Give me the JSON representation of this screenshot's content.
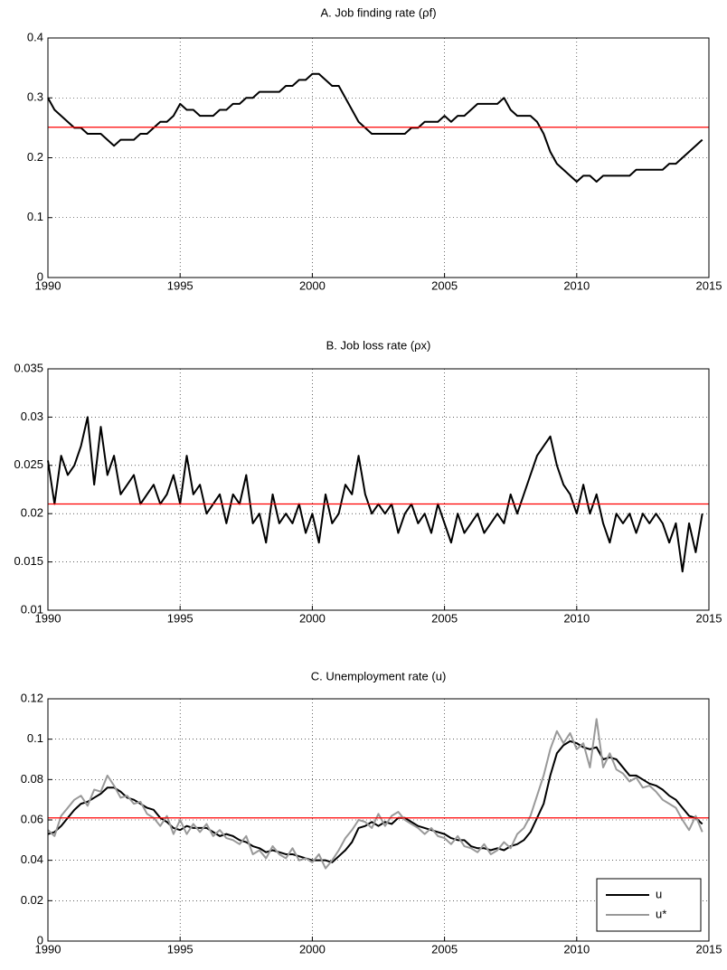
{
  "chart_data": [
    {
      "type": "line",
      "title": "A. Job finding rate (ρf)",
      "grid": true,
      "xlim": [
        1990,
        2015
      ],
      "xticks": [
        1990,
        1995,
        2000,
        2005,
        2010,
        2015
      ],
      "ylim": [
        0,
        0.4
      ],
      "yticks": [
        0,
        0.1,
        0.2,
        0.3,
        0.4
      ],
      "reference_line": {
        "value": 0.251,
        "color": "#ff0000"
      },
      "x": [
        1990,
        1990.25,
        1990.5,
        1990.75,
        1991,
        1991.25,
        1991.5,
        1991.75,
        1992,
        1992.25,
        1992.5,
        1992.75,
        1993,
        1993.25,
        1993.5,
        1993.75,
        1994,
        1994.25,
        1994.5,
        1994.75,
        1995,
        1995.25,
        1995.5,
        1995.75,
        1996,
        1996.25,
        1996.5,
        1996.75,
        1997,
        1997.25,
        1997.5,
        1997.75,
        1998,
        1998.25,
        1998.5,
        1998.75,
        1999,
        1999.25,
        1999.5,
        1999.75,
        2000,
        2000.25,
        2000.5,
        2000.75,
        2001,
        2001.25,
        2001.5,
        2001.75,
        2002,
        2002.25,
        2002.5,
        2002.75,
        2003,
        2003.25,
        2003.5,
        2003.75,
        2004,
        2004.25,
        2004.5,
        2004.75,
        2005,
        2005.25,
        2005.5,
        2005.75,
        2006,
        2006.25,
        2006.5,
        2006.75,
        2007,
        2007.25,
        2007.5,
        2007.75,
        2008,
        2008.25,
        2008.5,
        2008.75,
        2009,
        2009.25,
        2009.5,
        2009.75,
        2010,
        2010.25,
        2010.5,
        2010.75,
        2011,
        2011.25,
        2011.5,
        2011.75,
        2012,
        2012.25,
        2012.5,
        2012.75,
        2013,
        2013.25,
        2013.5,
        2013.75,
        2014,
        2014.25,
        2014.5,
        2014.75
      ],
      "series": [
        {
          "color": "#000000",
          "values": [
            0.3,
            0.28,
            0.27,
            0.26,
            0.25,
            0.25,
            0.24,
            0.24,
            0.24,
            0.23,
            0.22,
            0.23,
            0.23,
            0.23,
            0.24,
            0.24,
            0.25,
            0.26,
            0.26,
            0.27,
            0.29,
            0.28,
            0.28,
            0.27,
            0.27,
            0.27,
            0.28,
            0.28,
            0.29,
            0.29,
            0.3,
            0.3,
            0.31,
            0.31,
            0.31,
            0.31,
            0.32,
            0.32,
            0.33,
            0.33,
            0.34,
            0.34,
            0.33,
            0.32,
            0.32,
            0.3,
            0.28,
            0.26,
            0.25,
            0.24,
            0.24,
            0.24,
            0.24,
            0.24,
            0.24,
            0.25,
            0.25,
            0.26,
            0.26,
            0.26,
            0.27,
            0.26,
            0.27,
            0.27,
            0.28,
            0.29,
            0.29,
            0.29,
            0.29,
            0.3,
            0.28,
            0.27,
            0.27,
            0.27,
            0.26,
            0.24,
            0.21,
            0.19,
            0.18,
            0.17,
            0.16,
            0.17,
            0.17,
            0.16,
            0.17,
            0.17,
            0.17,
            0.17,
            0.17,
            0.18,
            0.18,
            0.18,
            0.18,
            0.18,
            0.19,
            0.19,
            0.2,
            0.21,
            0.22,
            0.23
          ]
        }
      ]
    },
    {
      "type": "line",
      "title": "B. Job loss rate (ρx)",
      "grid": true,
      "xlim": [
        1990,
        2015
      ],
      "xticks": [
        1990,
        1995,
        2000,
        2005,
        2010,
        2015
      ],
      "ylim": [
        0.01,
        0.035
      ],
      "yticks": [
        0.01,
        0.015,
        0.02,
        0.025,
        0.03,
        0.035
      ],
      "reference_line": {
        "value": 0.021,
        "color": "#ff0000"
      },
      "x": [
        1990,
        1990.25,
        1990.5,
        1990.75,
        1991,
        1991.25,
        1991.5,
        1991.75,
        1992,
        1992.25,
        1992.5,
        1992.75,
        1993,
        1993.25,
        1993.5,
        1993.75,
        1994,
        1994.25,
        1994.5,
        1994.75,
        1995,
        1995.25,
        1995.5,
        1995.75,
        1996,
        1996.25,
        1996.5,
        1996.75,
        1997,
        1997.25,
        1997.5,
        1997.75,
        1998,
        1998.25,
        1998.5,
        1998.75,
        1999,
        1999.25,
        1999.5,
        1999.75,
        2000,
        2000.25,
        2000.5,
        2000.75,
        2001,
        2001.25,
        2001.5,
        2001.75,
        2002,
        2002.25,
        2002.5,
        2002.75,
        2003,
        2003.25,
        2003.5,
        2003.75,
        2004,
        2004.25,
        2004.5,
        2004.75,
        2005,
        2005.25,
        2005.5,
        2005.75,
        2006,
        2006.25,
        2006.5,
        2006.75,
        2007,
        2007.25,
        2007.5,
        2007.75,
        2008,
        2008.25,
        2008.5,
        2008.75,
        2009,
        2009.25,
        2009.5,
        2009.75,
        2010,
        2010.25,
        2010.5,
        2010.75,
        2011,
        2011.25,
        2011.5,
        2011.75,
        2012,
        2012.25,
        2012.5,
        2012.75,
        2013,
        2013.25,
        2013.5,
        2013.75,
        2014,
        2014.25,
        2014.5,
        2014.75
      ],
      "series": [
        {
          "color": "#000000",
          "values": [
            0.0255,
            0.021,
            0.026,
            0.024,
            0.025,
            0.027,
            0.03,
            0.023,
            0.029,
            0.024,
            0.026,
            0.022,
            0.023,
            0.024,
            0.021,
            0.022,
            0.023,
            0.021,
            0.022,
            0.024,
            0.021,
            0.026,
            0.022,
            0.023,
            0.02,
            0.021,
            0.022,
            0.019,
            0.022,
            0.021,
            0.024,
            0.019,
            0.02,
            0.017,
            0.022,
            0.019,
            0.02,
            0.019,
            0.021,
            0.018,
            0.02,
            0.017,
            0.022,
            0.019,
            0.02,
            0.023,
            0.022,
            0.026,
            0.022,
            0.02,
            0.021,
            0.02,
            0.021,
            0.018,
            0.02,
            0.021,
            0.019,
            0.02,
            0.018,
            0.021,
            0.019,
            0.017,
            0.02,
            0.018,
            0.019,
            0.02,
            0.018,
            0.019,
            0.02,
            0.019,
            0.022,
            0.02,
            0.022,
            0.024,
            0.026,
            0.027,
            0.028,
            0.025,
            0.023,
            0.022,
            0.02,
            0.023,
            0.02,
            0.022,
            0.019,
            0.017,
            0.02,
            0.019,
            0.02,
            0.018,
            0.02,
            0.019,
            0.02,
            0.019,
            0.017,
            0.019,
            0.014,
            0.019,
            0.016,
            0.02
          ]
        }
      ]
    },
    {
      "type": "line",
      "title": "C. Unemployment rate (u)",
      "grid": true,
      "legend": "lower right",
      "xlim": [
        1990,
        2015
      ],
      "xticks": [
        1990,
        1995,
        2000,
        2005,
        2010,
        2015
      ],
      "ylim": [
        0,
        0.12
      ],
      "yticks": [
        0,
        0.02,
        0.04,
        0.06,
        0.08,
        0.1,
        0.12
      ],
      "reference_line": {
        "value": 0.061,
        "color": "#ff0000"
      },
      "x": [
        1990,
        1990.25,
        1990.5,
        1990.75,
        1991,
        1991.25,
        1991.5,
        1991.75,
        1992,
        1992.25,
        1992.5,
        1992.75,
        1993,
        1993.25,
        1993.5,
        1993.75,
        1994,
        1994.25,
        1994.5,
        1994.75,
        1995,
        1995.25,
        1995.5,
        1995.75,
        1996,
        1996.25,
        1996.5,
        1996.75,
        1997,
        1997.25,
        1997.5,
        1997.75,
        1998,
        1998.25,
        1998.5,
        1998.75,
        1999,
        1999.25,
        1999.5,
        1999.75,
        2000,
        2000.25,
        2000.5,
        2000.75,
        2001,
        2001.25,
        2001.5,
        2001.75,
        2002,
        2002.25,
        2002.5,
        2002.75,
        2003,
        2003.25,
        2003.5,
        2003.75,
        2004,
        2004.25,
        2004.5,
        2004.75,
        2005,
        2005.25,
        2005.5,
        2005.75,
        2006,
        2006.25,
        2006.5,
        2006.75,
        2007,
        2007.25,
        2007.5,
        2007.75,
        2008,
        2008.25,
        2008.5,
        2008.75,
        2009,
        2009.25,
        2009.5,
        2009.75,
        2010,
        2010.25,
        2010.5,
        2010.75,
        2011,
        2011.25,
        2011.5,
        2011.75,
        2012,
        2012.25,
        2012.5,
        2012.75,
        2013,
        2013.25,
        2013.5,
        2013.75,
        2014,
        2014.25,
        2014.5,
        2014.75
      ],
      "series": [
        {
          "name": "u",
          "color": "#000000",
          "values": [
            0.053,
            0.054,
            0.057,
            0.061,
            0.065,
            0.068,
            0.069,
            0.071,
            0.073,
            0.076,
            0.076,
            0.074,
            0.071,
            0.07,
            0.068,
            0.066,
            0.065,
            0.061,
            0.059,
            0.056,
            0.055,
            0.057,
            0.056,
            0.056,
            0.056,
            0.054,
            0.052,
            0.053,
            0.052,
            0.05,
            0.049,
            0.047,
            0.046,
            0.044,
            0.045,
            0.044,
            0.043,
            0.043,
            0.042,
            0.041,
            0.04,
            0.04,
            0.04,
            0.039,
            0.042,
            0.045,
            0.049,
            0.056,
            0.057,
            0.059,
            0.057,
            0.059,
            0.058,
            0.061,
            0.061,
            0.059,
            0.057,
            0.056,
            0.055,
            0.054,
            0.053,
            0.051,
            0.05,
            0.05,
            0.047,
            0.046,
            0.046,
            0.045,
            0.046,
            0.045,
            0.047,
            0.048,
            0.05,
            0.054,
            0.061,
            0.068,
            0.082,
            0.093,
            0.097,
            0.099,
            0.098,
            0.096,
            0.095,
            0.096,
            0.09,
            0.091,
            0.09,
            0.086,
            0.082,
            0.082,
            0.08,
            0.078,
            0.077,
            0.075,
            0.072,
            0.07,
            0.066,
            0.062,
            0.061,
            0.058
          ]
        },
        {
          "name": "u*",
          "color": "#999999",
          "values": [
            0.055,
            0.052,
            0.062,
            0.066,
            0.07,
            0.072,
            0.067,
            0.075,
            0.074,
            0.082,
            0.077,
            0.071,
            0.072,
            0.068,
            0.069,
            0.063,
            0.061,
            0.057,
            0.062,
            0.053,
            0.06,
            0.053,
            0.058,
            0.054,
            0.058,
            0.052,
            0.055,
            0.051,
            0.05,
            0.048,
            0.052,
            0.043,
            0.045,
            0.041,
            0.047,
            0.043,
            0.041,
            0.046,
            0.04,
            0.041,
            0.039,
            0.043,
            0.036,
            0.04,
            0.045,
            0.051,
            0.055,
            0.06,
            0.059,
            0.056,
            0.063,
            0.057,
            0.062,
            0.064,
            0.06,
            0.058,
            0.056,
            0.053,
            0.056,
            0.052,
            0.051,
            0.048,
            0.052,
            0.047,
            0.046,
            0.044,
            0.048,
            0.043,
            0.045,
            0.049,
            0.046,
            0.053,
            0.056,
            0.062,
            0.072,
            0.082,
            0.095,
            0.104,
            0.098,
            0.103,
            0.095,
            0.098,
            0.086,
            0.11,
            0.086,
            0.093,
            0.085,
            0.083,
            0.079,
            0.081,
            0.076,
            0.077,
            0.074,
            0.07,
            0.068,
            0.066,
            0.06,
            0.055,
            0.062,
            0.054
          ]
        }
      ]
    }
  ]
}
